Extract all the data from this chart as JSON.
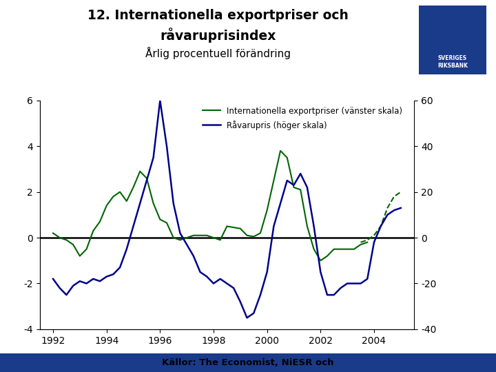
{
  "title_line1": "12. Internationella exportpriser och",
  "title_line2": "råvaruprisindex",
  "subtitle": "Årlig procentuell förändring",
  "source": "Källor: The Economist, NiESR och",
  "legend_green": "Internationella exportpriser (vänster skala)",
  "legend_blue": "Råvarupris (höger skala)",
  "background_color": "#ffffff",
  "footer_bar_color": "#1a3a8a",
  "logo_bg_color": "#1a3a8a",
  "green_color": "#006400",
  "blue_color": "#00008B",
  "left_ylim": [
    -4,
    6
  ],
  "right_ylim": [
    -40,
    60
  ],
  "left_yticks": [
    -4,
    -2,
    0,
    2,
    4,
    6
  ],
  "right_yticks": [
    -40,
    -20,
    0,
    20,
    40,
    60
  ],
  "xlim_start": 1991.5,
  "xlim_end": 2005.5,
  "xticks": [
    1992,
    1994,
    1996,
    1998,
    2000,
    2002,
    2004
  ],
  "green_x": [
    1992.0,
    1992.25,
    1992.5,
    1992.75,
    1993.0,
    1993.25,
    1993.5,
    1993.75,
    1994.0,
    1994.25,
    1994.5,
    1994.75,
    1995.0,
    1995.25,
    1995.5,
    1995.75,
    1996.0,
    1996.25,
    1996.5,
    1996.75,
    1997.0,
    1997.25,
    1997.5,
    1997.75,
    1998.0,
    1998.25,
    1998.5,
    1998.75,
    1999.0,
    1999.25,
    1999.5,
    1999.75,
    2000.0,
    2000.25,
    2000.5,
    2000.75,
    2001.0,
    2001.25,
    2001.5,
    2001.75,
    2002.0,
    2002.25,
    2002.5,
    2002.75,
    2003.0,
    2003.25,
    2003.5,
    2003.75
  ],
  "green_y": [
    0.2,
    0.0,
    -0.1,
    -0.3,
    -0.8,
    -0.5,
    0.3,
    0.7,
    1.4,
    1.8,
    2.0,
    1.6,
    2.2,
    2.9,
    2.6,
    1.5,
    0.8,
    0.65,
    0.0,
    -0.1,
    0.0,
    0.1,
    0.1,
    0.1,
    0.0,
    -0.1,
    0.5,
    0.45,
    0.4,
    0.1,
    0.05,
    0.2,
    1.2,
    2.5,
    3.8,
    3.5,
    2.2,
    2.1,
    0.5,
    -0.5,
    -1.0,
    -0.8,
    -0.5,
    -0.5,
    -0.5,
    -0.5,
    -0.3,
    -0.2
  ],
  "green_dashed_x": [
    2003.5,
    2003.75,
    2004.0,
    2004.25,
    2004.5,
    2004.75,
    2005.0
  ],
  "green_dashed_y": [
    -0.2,
    -0.1,
    0.1,
    0.5,
    1.3,
    1.8,
    2.0
  ],
  "blue_x": [
    1992.0,
    1992.25,
    1992.5,
    1992.75,
    1993.0,
    1993.25,
    1993.5,
    1993.75,
    1994.0,
    1994.25,
    1994.5,
    1994.75,
    1995.0,
    1995.25,
    1995.5,
    1995.75,
    1996.0,
    1996.25,
    1996.5,
    1996.75,
    1997.0,
    1997.25,
    1997.5,
    1997.75,
    1998.0,
    1998.25,
    1998.5,
    1998.75,
    1999.0,
    1999.25,
    1999.5,
    1999.75,
    2000.0,
    2000.25,
    2000.5,
    2000.75,
    2001.0,
    2001.25,
    2001.5,
    2001.75,
    2002.0,
    2002.25,
    2002.5,
    2002.75,
    2003.0,
    2003.25,
    2003.5,
    2003.75,
    2004.0,
    2004.25,
    2004.5,
    2004.75,
    2005.0
  ],
  "blue_y_right": [
    -18,
    -22,
    -25,
    -21,
    -19,
    -20,
    -18,
    -19,
    -17,
    -16,
    -13,
    -5,
    5,
    15,
    25,
    35,
    60,
    40,
    15,
    2,
    -3,
    -8,
    -15,
    -17,
    -20,
    -18,
    -20,
    -22,
    -28,
    -35,
    -33,
    -25,
    -15,
    5,
    15,
    25,
    23,
    28,
    22,
    5,
    -15,
    -25,
    -25,
    -22,
    -20,
    -20,
    -20,
    -18,
    -2,
    5,
    10,
    12,
    13
  ]
}
